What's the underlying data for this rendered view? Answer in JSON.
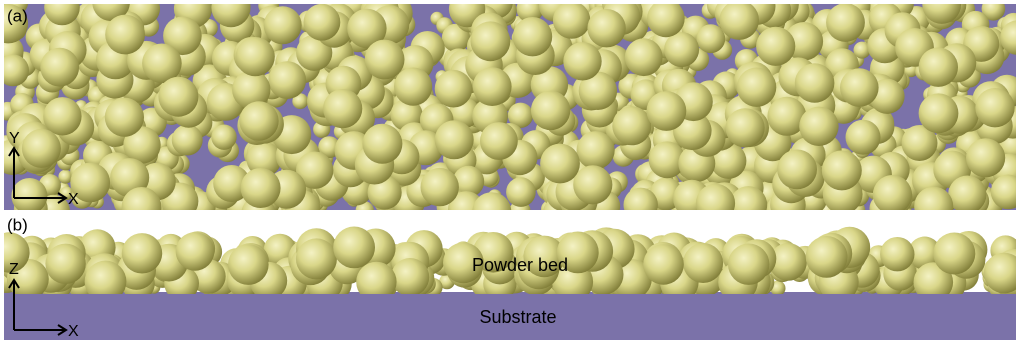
{
  "panel_a": {
    "label": "(a)",
    "axis_vertical": "Y",
    "axis_horizontal": "X"
  },
  "panel_b": {
    "label": "(b)",
    "axis_vertical": "Z",
    "axis_horizontal": "X",
    "powder_label": "Powder bed",
    "substrate_label": "Substrate"
  }
}
